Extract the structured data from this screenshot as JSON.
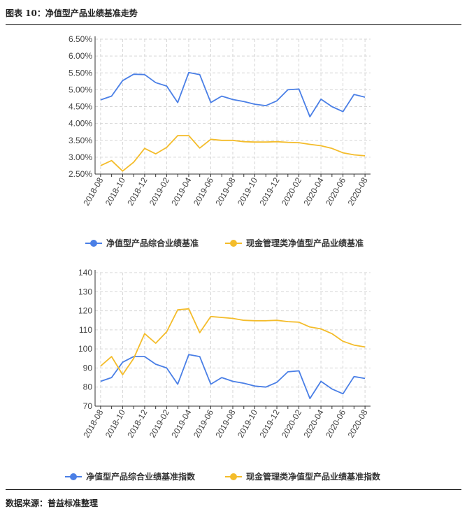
{
  "header": {
    "title": "图表 10：净值型产品业绩基准走势"
  },
  "footer": {
    "source": "数据来源：普益标准整理"
  },
  "chart_data": [
    {
      "type": "line",
      "x": [
        "2018-08",
        "2018-09",
        "2018-10",
        "2018-11",
        "2018-12",
        "2019-01",
        "2019-02",
        "2019-03",
        "2019-04",
        "2019-05",
        "2019-06",
        "2019-07",
        "2019-08",
        "2019-09",
        "2019-10",
        "2019-11",
        "2019-12",
        "2020-01",
        "2020-02",
        "2020-03",
        "2020-04",
        "2020-05",
        "2020-06",
        "2020-07",
        "2020-08"
      ],
      "x_tick_labels": [
        "2018-08",
        "2018-10",
        "2018-12",
        "2019-02",
        "2019-04",
        "2019-06",
        "2019-08",
        "2019-10",
        "2019-12",
        "2020-02",
        "2020-04",
        "2020-06",
        "2020-08"
      ],
      "ylim": [
        0.025,
        0.065
      ],
      "y_ticks": [
        "2.50%",
        "3.00%",
        "3.50%",
        "4.00%",
        "4.50%",
        "5.00%",
        "5.50%",
        "6.00%",
        "6.50%"
      ],
      "grid": true,
      "legend_position": "bottom",
      "series": [
        {
          "name": "净值型产品综合业绩基准",
          "color": "#4a7fe6",
          "values": [
            0.047,
            0.0481,
            0.0527,
            0.0546,
            0.0545,
            0.0521,
            0.0511,
            0.0462,
            0.0551,
            0.0545,
            0.0462,
            0.0481,
            0.0471,
            0.0465,
            0.0457,
            0.0453,
            0.0467,
            0.05,
            0.0502,
            0.042,
            0.0472,
            0.045,
            0.0435,
            0.0486,
            0.0478
          ]
        },
        {
          "name": "现金管理类净值型产品业绩基准",
          "color": "#f4bc2a",
          "values": [
            0.0275,
            0.029,
            0.0259,
            0.0285,
            0.0326,
            0.031,
            0.0329,
            0.0364,
            0.0364,
            0.0327,
            0.0353,
            0.035,
            0.035,
            0.0346,
            0.0345,
            0.0345,
            0.0346,
            0.0344,
            0.0343,
            0.0338,
            0.0334,
            0.0326,
            0.0313,
            0.0307,
            0.0304
          ]
        }
      ]
    },
    {
      "type": "line",
      "x": [
        "2018-08",
        "2018-09",
        "2018-10",
        "2018-11",
        "2018-12",
        "2019-01",
        "2019-02",
        "2019-03",
        "2019-04",
        "2019-05",
        "2019-06",
        "2019-07",
        "2019-08",
        "2019-09",
        "2019-10",
        "2019-11",
        "2019-12",
        "2020-01",
        "2020-02",
        "2020-03",
        "2020-04",
        "2020-05",
        "2020-06",
        "2020-07",
        "2020-08"
      ],
      "x_tick_labels": [
        "2018-08",
        "2018-10",
        "2018-12",
        "2019-02",
        "2019-04",
        "2019-06",
        "2019-08",
        "2019-10",
        "2019-12",
        "2020-02",
        "2020-04",
        "2020-06",
        "2020-08"
      ],
      "ylim": [
        70,
        140
      ],
      "y_ticks": [
        "70",
        "80",
        "90",
        "100",
        "110",
        "120",
        "130",
        "140"
      ],
      "grid": true,
      "legend_position": "bottom",
      "series": [
        {
          "name": "净值型产品综合业绩基准指数",
          "color": "#4a7fe6",
          "values": [
            83,
            85,
            93,
            96,
            96,
            92,
            90,
            81.5,
            97,
            96,
            81.5,
            85,
            83,
            82,
            80.5,
            80,
            82.5,
            88,
            88.5,
            74,
            83,
            79,
            76.5,
            85.5,
            84.5
          ]
        },
        {
          "name": "现金管理类净值型产品业绩基准指数",
          "color": "#f4bc2a",
          "values": [
            91,
            96,
            86.5,
            95,
            108,
            103,
            109,
            120.5,
            121,
            108.5,
            117,
            116.5,
            116,
            115,
            114.8,
            114.8,
            115,
            114.3,
            114,
            111.5,
            110.5,
            108,
            104,
            102,
            101
          ]
        }
      ]
    }
  ]
}
